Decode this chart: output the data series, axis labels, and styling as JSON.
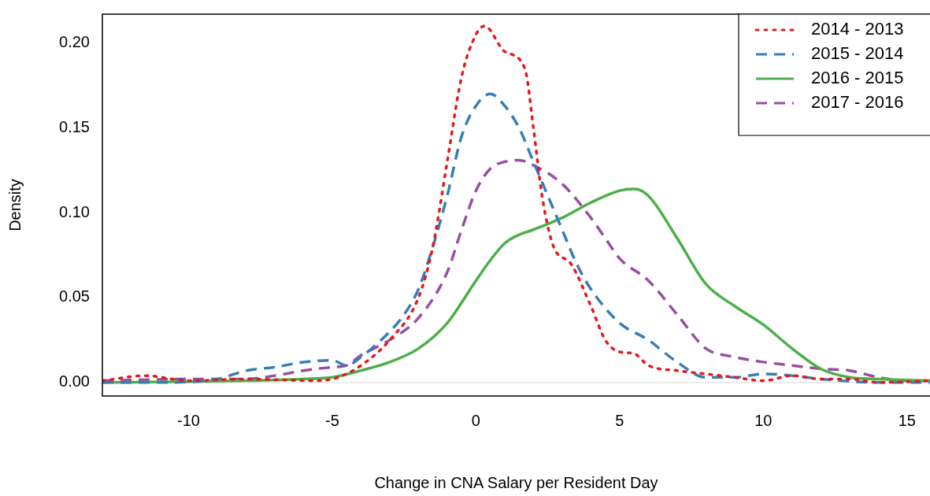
{
  "chart_data": {
    "type": "line",
    "xlabel": "Change in CNA Salary per Resident Day",
    "ylabel": "Density",
    "xlim": [
      -13,
      15.8
    ],
    "ylim": [
      -0.008,
      0.217
    ],
    "xticks": [
      -10,
      -5,
      0,
      5,
      10,
      15
    ],
    "yticks": [
      {
        "value": 0,
        "label": "0.00"
      },
      {
        "value": 0.05,
        "label": "0.05"
      },
      {
        "value": 0.1,
        "label": "0.10"
      },
      {
        "value": 0.15,
        "label": "0.15"
      },
      {
        "value": 0.2,
        "label": "0.20"
      }
    ],
    "grid": false,
    "legend": "top right",
    "marker": "none",
    "ref_lines": [
      {
        "axis": "y",
        "value": 0,
        "color": "#e6e6e6",
        "line_style": "solid"
      }
    ],
    "series": [
      {
        "name": "2014 - 2013",
        "color": "#e41a1c",
        "line_style": "dotted",
        "x": [
          -13,
          -11.5,
          -10,
          -8,
          -5.5,
          -4.8,
          -4,
          -3,
          -2,
          -1.5,
          -1,
          -0.5,
          0,
          0.3,
          1,
          1.7,
          2,
          2.3,
          2.7,
          3.3,
          4,
          4.5,
          5,
          5.5,
          6,
          7,
          8,
          9,
          10,
          11,
          12,
          13,
          14,
          15.8
        ],
        "values": [
          0.001,
          0.004,
          0.001,
          0.002,
          0.001,
          0.003,
          0.01,
          0.025,
          0.05,
          0.08,
          0.13,
          0.18,
          0.205,
          0.21,
          0.195,
          0.185,
          0.15,
          0.11,
          0.08,
          0.07,
          0.045,
          0.025,
          0.018,
          0.017,
          0.01,
          0.007,
          0.005,
          0.003,
          0.001,
          0.004,
          0.002,
          0.002,
          0,
          0.001
        ]
      },
      {
        "name": "2015 - 2014",
        "color": "#377eb8",
        "line_style": "dashed",
        "x": [
          -13,
          -11,
          -9,
          -8,
          -7,
          -6,
          -5,
          -4.5,
          -4,
          -3,
          -2.5,
          -2,
          -1.5,
          -1,
          -0.5,
          0,
          0.5,
          1,
          1.5,
          2,
          2.5,
          3,
          3.5,
          4,
          5,
          6,
          7,
          8,
          9,
          10,
          11,
          12,
          14,
          15.8
        ],
        "values": [
          0,
          0,
          0.002,
          0.007,
          0.009,
          0.012,
          0.013,
          0.01,
          0.015,
          0.03,
          0.04,
          0.055,
          0.08,
          0.11,
          0.145,
          0.163,
          0.17,
          0.163,
          0.15,
          0.13,
          0.11,
          0.09,
          0.07,
          0.055,
          0.035,
          0.025,
          0.012,
          0.003,
          0.003,
          0.005,
          0.004,
          0.002,
          0,
          0
        ]
      },
      {
        "name": "2016 - 2015",
        "color": "#4daf4a",
        "line_style": "solid",
        "x": [
          -13,
          -10,
          -8,
          -6,
          -5,
          -4,
          -3,
          -2,
          -1,
          0,
          0.5,
          1,
          1.5,
          2,
          3,
          4,
          5,
          5.5,
          6,
          7,
          8,
          9,
          10,
          11,
          12,
          13,
          14,
          15.8
        ],
        "values": [
          0,
          0.0005,
          0.001,
          0.002,
          0.003,
          0.007,
          0.012,
          0.02,
          0.035,
          0.06,
          0.072,
          0.082,
          0.087,
          0.09,
          0.097,
          0.106,
          0.113,
          0.114,
          0.11,
          0.085,
          0.058,
          0.045,
          0.034,
          0.02,
          0.008,
          0.003,
          0.002,
          0.001
        ]
      },
      {
        "name": "2017 - 2016",
        "color": "#984ea3",
        "line_style": "dashed",
        "x": [
          -13,
          -10,
          -8,
          -7,
          -6,
          -5,
          -4.5,
          -4,
          -3,
          -2,
          -1,
          -0.5,
          0,
          0.5,
          1,
          1.5,
          2,
          3,
          4,
          4.5,
          5,
          6,
          7,
          8,
          9,
          10,
          11,
          12,
          13,
          14,
          15,
          15.8
        ],
        "values": [
          0.001,
          0.002,
          0.002,
          0.004,
          0.007,
          0.009,
          0.01,
          0.016,
          0.025,
          0.038,
          0.065,
          0.09,
          0.113,
          0.126,
          0.13,
          0.131,
          0.128,
          0.117,
          0.097,
          0.085,
          0.073,
          0.06,
          0.04,
          0.02,
          0.015,
          0.012,
          0.01,
          0.008,
          0.007,
          0.003,
          0.001,
          0.001
        ]
      }
    ]
  }
}
